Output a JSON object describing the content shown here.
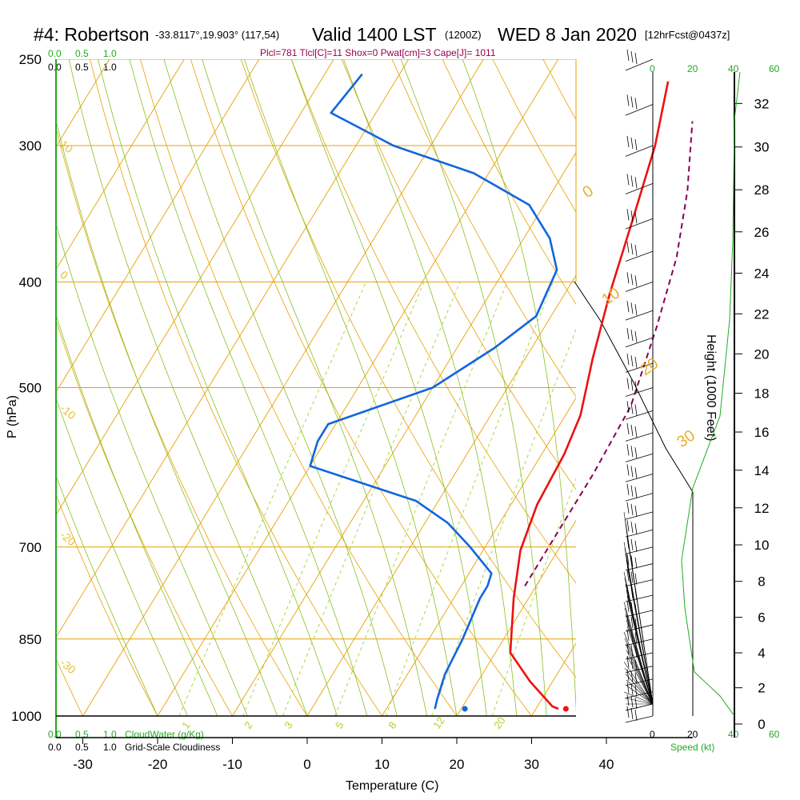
{
  "title": {
    "station": "#4: Robertson",
    "coords": "-33.8117°,19.903° (117,54)",
    "valid": "Valid 1400 LST",
    "zulu": "(1200Z)",
    "date": "WED 8 Jan 2020",
    "forecast": "[12hrFcst@0437z]"
  },
  "params": "Plcl=781 Tlcl[C]=11 Shox=0 Pwat[cm]=3 Cape[J]= 1011",
  "cloud_scale": {
    "top_values": [
      "0.0",
      "0.5",
      "1.0"
    ],
    "bottom_values": [
      "0.0",
      "0.5",
      "1.0"
    ],
    "cloudwater_label": "CloudWater (g/Kg)",
    "cloudiness_label": "Grid-Scale Cloudiness"
  },
  "speed_axis": {
    "ticks": [
      "0",
      "20",
      "40",
      "60"
    ],
    "label": "Speed (kt)"
  },
  "chart_data": {
    "type": "line",
    "xlabel": "Temperature (C)",
    "ylabel": "P (hPa)",
    "height_label": "Height (1000 Feet)",
    "x_ticks": [
      -30,
      -20,
      -10,
      0,
      10,
      20,
      30,
      40
    ],
    "p_ticks": [
      250,
      300,
      400,
      500,
      700,
      850,
      1000
    ],
    "height_ticks": [
      0,
      2,
      4,
      6,
      8,
      10,
      12,
      14,
      16,
      18,
      20,
      22,
      24,
      26,
      28,
      30,
      32
    ],
    "isotherm_labels": [
      "0",
      "10",
      "20",
      "30"
    ],
    "dry_adiabat_labels": [
      "10",
      "0",
      "-10",
      "-20",
      "-30"
    ],
    "mixing_ratio_labels": [
      "1",
      "2",
      "3",
      "5",
      "8",
      "12",
      "20"
    ],
    "surface_temperature": 34,
    "surface_dewpoint": 20.5,
    "series": [
      {
        "name": "Temperature",
        "color": "#ee1111",
        "points": [
          [
            33,
            985
          ],
          [
            32,
            980
          ],
          [
            27,
            930
          ],
          [
            22,
            875
          ],
          [
            18,
            780
          ],
          [
            15,
            705
          ],
          [
            13.5,
            640
          ],
          [
            13,
            575
          ],
          [
            12,
            530
          ],
          [
            9,
            470
          ],
          [
            6,
            410
          ],
          [
            3,
            350
          ],
          [
            0,
            300
          ],
          [
            -3.5,
            262
          ]
        ]
      },
      {
        "name": "Dewpoint",
        "color": "#1166dd",
        "points": [
          [
            16.5,
            985
          ],
          [
            16,
            965
          ],
          [
            15,
            915
          ],
          [
            14.5,
            850
          ],
          [
            13.5,
            780
          ],
          [
            13.5,
            760
          ],
          [
            13,
            740
          ],
          [
            8,
            700
          ],
          [
            3,
            665
          ],
          [
            -3,
            635
          ],
          [
            -20,
            590
          ],
          [
            -21,
            560
          ],
          [
            -21,
            540
          ],
          [
            -10,
            500
          ],
          [
            -5,
            460
          ],
          [
            -2,
            430
          ],
          [
            -3,
            390
          ],
          [
            -6.5,
            365
          ],
          [
            -12,
            340
          ],
          [
            -22,
            318
          ],
          [
            -35,
            300
          ],
          [
            -46,
            280
          ],
          [
            -45,
            258
          ]
        ]
      },
      {
        "name": "Parcel",
        "color": "#880055",
        "dashed": true,
        "points": [
          [
            18.5,
            760
          ],
          [
            18.5,
            700
          ],
          [
            18.5,
            600
          ],
          [
            18,
            520
          ],
          [
            15,
            440
          ],
          [
            12,
            380
          ],
          [
            8,
            330
          ],
          [
            3,
            285
          ]
        ]
      }
    ],
    "wind_barbs": 31
  }
}
